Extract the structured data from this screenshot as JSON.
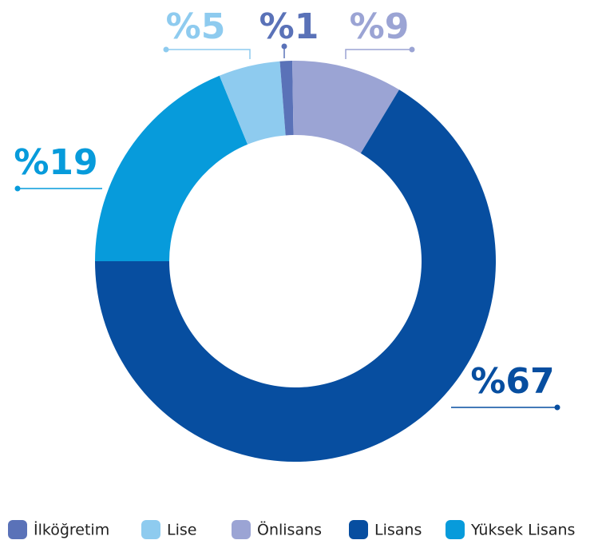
{
  "chart_data": {
    "type": "donut",
    "categories": [
      "İlköğretim",
      "Lise",
      "Önlisans",
      "Lisans",
      "Yüksek Lisans"
    ],
    "series": [
      {
        "values": [
          1,
          5,
          9,
          67,
          19
        ],
        "value_labels": [
          "%1",
          "%5",
          "%9",
          "%67",
          "%19"
        ],
        "colors": [
          "#5a72b8",
          "#8ecbef",
          "#9ba4d4",
          "#074ea0",
          "#079bdb"
        ]
      }
    ],
    "legend": "bottom"
  }
}
